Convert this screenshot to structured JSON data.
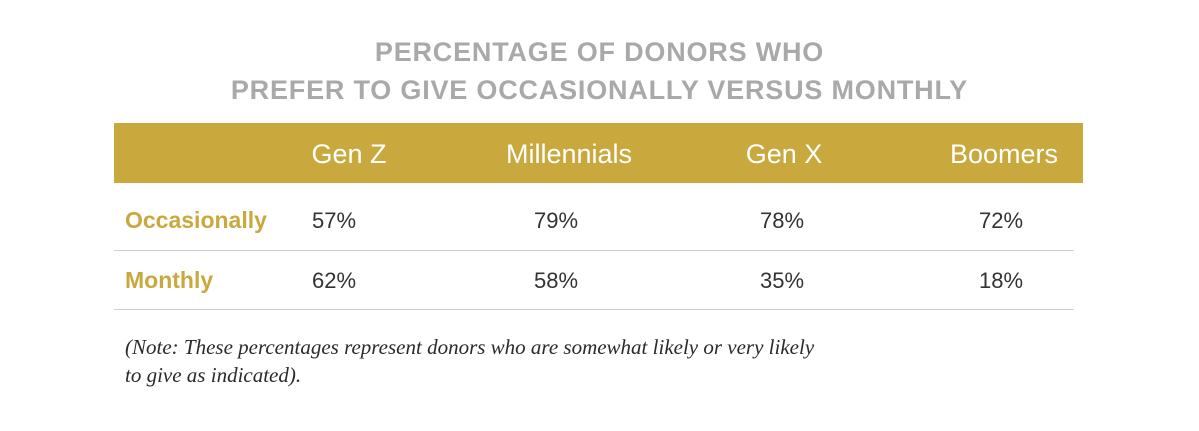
{
  "title": {
    "line1": "PERCENTAGE OF DONORS WHO",
    "line2": "PREFER TO GIVE OCCASIONALLY VERSUS MONTHLY"
  },
  "table": {
    "columns": [
      "Gen Z",
      "Millennials",
      "Gen X",
      "Boomers"
    ],
    "rows": [
      {
        "label": "Occasionally",
        "values": [
          "57%",
          "79%",
          "78%",
          "72%"
        ]
      },
      {
        "label": "Monthly",
        "values": [
          "62%",
          "58%",
          "35%",
          "18%"
        ]
      }
    ]
  },
  "note": {
    "line1": "(Note: These percentages represent donors who are somewhat likely or very likely",
    "line2": "to give as indicated)."
  },
  "colors": {
    "header_band": "#c9a93e",
    "row_label": "#c9a93e",
    "title": "#a9a9a9"
  }
}
